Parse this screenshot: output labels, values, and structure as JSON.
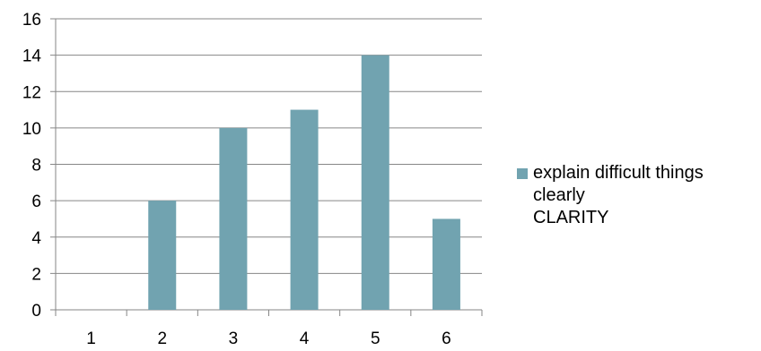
{
  "chart_data": {
    "type": "bar",
    "categories": [
      "1",
      "2",
      "3",
      "4",
      "5",
      "6"
    ],
    "series": [
      {
        "name": "explain  difficult things\nclearly\nCLARITY",
        "values": [
          0,
          6,
          10,
          11,
          14,
          5
        ],
        "color": "#71A3B0"
      }
    ],
    "title": "",
    "xlabel": "",
    "ylabel": "",
    "ylim": [
      0,
      16
    ],
    "ytick_step": 2,
    "grid": true,
    "legend_position": "right",
    "colors": {
      "bar": "#71A3B0",
      "gridline": "#868686",
      "axis": "#868686",
      "text": "#000000"
    }
  }
}
